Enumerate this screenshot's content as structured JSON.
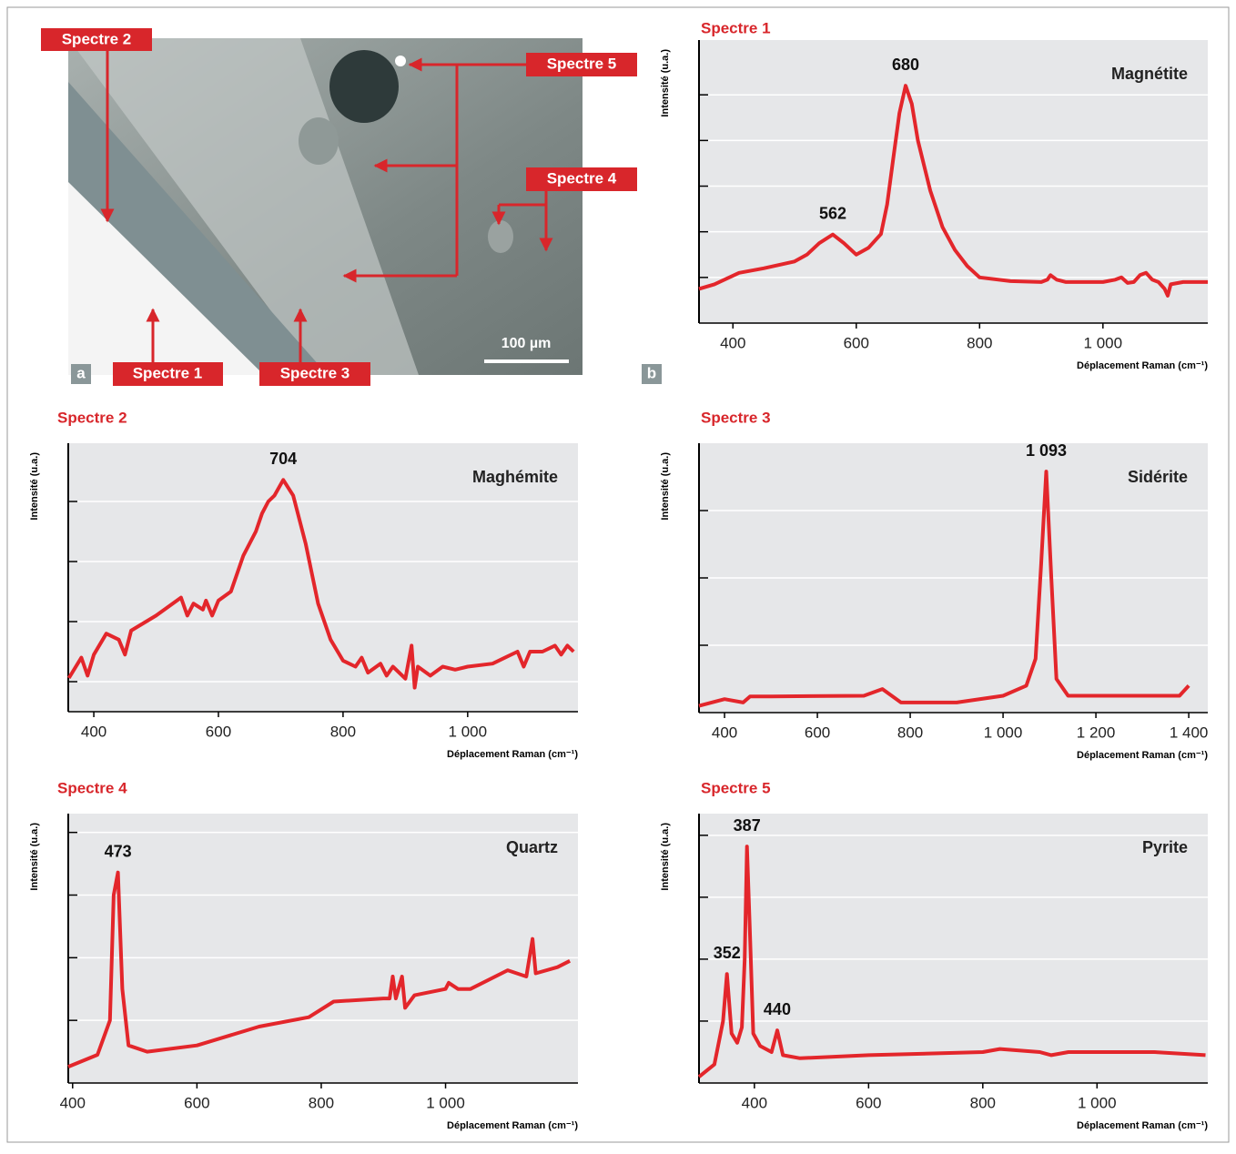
{
  "micrograph": {
    "labels": [
      "Spectre 2",
      "Spectre 5",
      "Spectre 4",
      "Spectre 1",
      "Spectre 3"
    ],
    "scale_bar": "100 µm",
    "panel_a": "a",
    "panel_b": "b"
  },
  "chart_data": [
    {
      "type": "line",
      "title": "Spectre 1",
      "annotation": "Magnétite",
      "ylabel": "Intensité (u.a.)",
      "xlabel": "Déplacement Raman (cm⁻¹)",
      "xlim": [
        345,
        1170
      ],
      "xticks": [
        400,
        600,
        800,
        {
          "value": 1000,
          "label": "1 000"
        }
      ],
      "ylim": [
        0,
        6.2
      ],
      "yticks": [
        1,
        2,
        3,
        4,
        5
      ],
      "grid": true,
      "peaks": [
        562,
        680
      ],
      "x": [
        345,
        370,
        410,
        450,
        500,
        520,
        540,
        562,
        580,
        600,
        620,
        640,
        650,
        660,
        670,
        680,
        690,
        700,
        720,
        740,
        760,
        780,
        800,
        850,
        900,
        910,
        915,
        925,
        940,
        1000,
        1020,
        1030,
        1040,
        1050,
        1060,
        1070,
        1080,
        1090,
        1100,
        1105,
        1110,
        1130,
        1170
      ],
      "series": [
        {
          "name": "Spectre 1",
          "color": "#e3262b",
          "values": [
            0.75,
            0.85,
            1.1,
            1.2,
            1.35,
            1.5,
            1.75,
            1.94,
            1.75,
            1.5,
            1.65,
            1.95,
            2.6,
            3.6,
            4.6,
            5.2,
            4.8,
            4.0,
            2.9,
            2.1,
            1.6,
            1.25,
            1.0,
            0.92,
            0.9,
            0.95,
            1.05,
            0.95,
            0.9,
            0.9,
            0.95,
            1.0,
            0.88,
            0.9,
            1.05,
            1.1,
            0.95,
            0.9,
            0.75,
            0.6,
            0.85,
            0.9,
            0.9
          ]
        }
      ]
    },
    {
      "type": "line",
      "title": "Spectre 2",
      "annotation": "Maghémite",
      "ylabel": "Intensité (u.a.)",
      "xlabel": "Déplacement Raman (cm⁻¹)",
      "xlim": [
        359,
        1177
      ],
      "xticks": [
        400,
        600,
        800,
        {
          "value": 1000,
          "label": "1 000"
        }
      ],
      "ylim": [
        0,
        4.47
      ],
      "yticks": [
        0.5,
        1.5,
        2.5,
        3.5
      ],
      "grid": true,
      "peaks": [
        704
      ],
      "x": [
        360,
        380,
        390,
        400,
        420,
        440,
        450,
        460,
        500,
        540,
        550,
        560,
        575,
        580,
        590,
        600,
        620,
        640,
        660,
        670,
        680,
        690,
        704,
        720,
        740,
        760,
        780,
        800,
        820,
        830,
        840,
        860,
        870,
        880,
        900,
        910,
        915,
        920,
        940,
        960,
        980,
        1000,
        1040,
        1060,
        1080,
        1090,
        1100,
        1120,
        1140,
        1150,
        1160,
        1170
      ],
      "series": [
        {
          "name": "Spectre 2",
          "color": "#e3262b",
          "values": [
            0.56,
            0.9,
            0.6,
            0.95,
            1.3,
            1.2,
            0.95,
            1.35,
            1.6,
            1.9,
            1.6,
            1.8,
            1.7,
            1.85,
            1.6,
            1.85,
            2.0,
            2.6,
            3.0,
            3.3,
            3.5,
            3.6,
            3.86,
            3.6,
            2.8,
            1.8,
            1.2,
            0.85,
            0.75,
            0.9,
            0.65,
            0.8,
            0.6,
            0.75,
            0.55,
            1.1,
            0.4,
            0.75,
            0.6,
            0.75,
            0.7,
            0.75,
            0.8,
            0.9,
            1.0,
            0.75,
            1.0,
            1.0,
            1.1,
            0.95,
            1.1,
            1.0
          ]
        }
      ]
    },
    {
      "type": "line",
      "title": "Spectre 3",
      "annotation": "Sidérite",
      "ylabel": "Intensité (u.a.)",
      "xlabel": "Déplacement Raman (cm⁻¹)",
      "xlim": [
        345,
        1441
      ],
      "xticks": [
        400,
        600,
        800,
        {
          "value": 1000,
          "label": "1 000"
        },
        {
          "value": 1200,
          "label": "1 200"
        },
        {
          "value": 1400,
          "label": "1 400"
        }
      ],
      "ylim": [
        0,
        4
      ],
      "yticks": [
        1,
        2,
        3
      ],
      "grid": true,
      "peaks": [
        {
          "value": 1093,
          "label": "1 093"
        }
      ],
      "x": [
        345,
        400,
        440,
        455,
        500,
        700,
        740,
        780,
        900,
        1000,
        1050,
        1070,
        1082,
        1093,
        1104,
        1115,
        1140,
        1300,
        1380,
        1400
      ],
      "series": [
        {
          "name": "Spectre 3",
          "color": "#e3262b",
          "values": [
            0.1,
            0.2,
            0.15,
            0.24,
            0.24,
            0.25,
            0.35,
            0.15,
            0.15,
            0.25,
            0.4,
            0.8,
            2.2,
            3.58,
            2.0,
            0.5,
            0.25,
            0.25,
            0.25,
            0.4
          ]
        }
      ]
    },
    {
      "type": "line",
      "title": "Spectre 4",
      "annotation": "Quartz",
      "ylabel": "Intensité (u.a.)",
      "xlabel": "Déplacement Raman (cm⁻¹)",
      "xlim": [
        393,
        1213
      ],
      "xticks": [
        400,
        600,
        800,
        {
          "value": 1000,
          "label": "1 000"
        }
      ],
      "ylim": [
        0,
        4.3
      ],
      "yticks": [
        1,
        2,
        3,
        4
      ],
      "grid": true,
      "peaks": [
        473
      ],
      "x": [
        393,
        440,
        460,
        466,
        473,
        480,
        490,
        520,
        600,
        700,
        780,
        820,
        900,
        910,
        915,
        920,
        930,
        935,
        950,
        1000,
        1005,
        1020,
        1040,
        1100,
        1130,
        1140,
        1145,
        1180,
        1200
      ],
      "series": [
        {
          "name": "Spectre 4",
          "color": "#e3262b",
          "values": [
            0.26,
            0.45,
            1.0,
            3.0,
            3.36,
            1.5,
            0.6,
            0.5,
            0.6,
            0.9,
            1.05,
            1.3,
            1.35,
            1.35,
            1.7,
            1.35,
            1.7,
            1.2,
            1.4,
            1.5,
            1.6,
            1.5,
            1.5,
            1.8,
            1.7,
            2.3,
            1.75,
            1.85,
            1.95
          ]
        }
      ]
    },
    {
      "type": "line",
      "title": "Spectre 5",
      "annotation": "Pyrite",
      "ylabel": "Intensité (u.a.)",
      "xlabel": "Déplacement Raman (cm⁻¹)",
      "xlim": [
        303,
        1194
      ],
      "xticks": [
        400,
        600,
        800,
        {
          "value": 1000,
          "label": "1 000"
        }
      ],
      "ylim": [
        0,
        4.35
      ],
      "yticks": [
        1,
        2,
        3,
        4
      ],
      "grid": true,
      "peaks": [
        352,
        387,
        440
      ],
      "x": [
        303,
        330,
        345,
        352,
        360,
        370,
        378,
        383,
        387,
        392,
        398,
        410,
        430,
        440,
        450,
        480,
        600,
        800,
        830,
        900,
        920,
        950,
        1100,
        1190
      ],
      "series": [
        {
          "name": "Spectre 5",
          "color": "#e3262b",
          "values": [
            0.1,
            0.3,
            1.0,
            1.76,
            0.8,
            0.65,
            0.9,
            2.0,
            3.82,
            2.5,
            0.8,
            0.6,
            0.5,
            0.85,
            0.45,
            0.4,
            0.45,
            0.5,
            0.55,
            0.5,
            0.45,
            0.5,
            0.5,
            0.45
          ]
        }
      ]
    }
  ]
}
